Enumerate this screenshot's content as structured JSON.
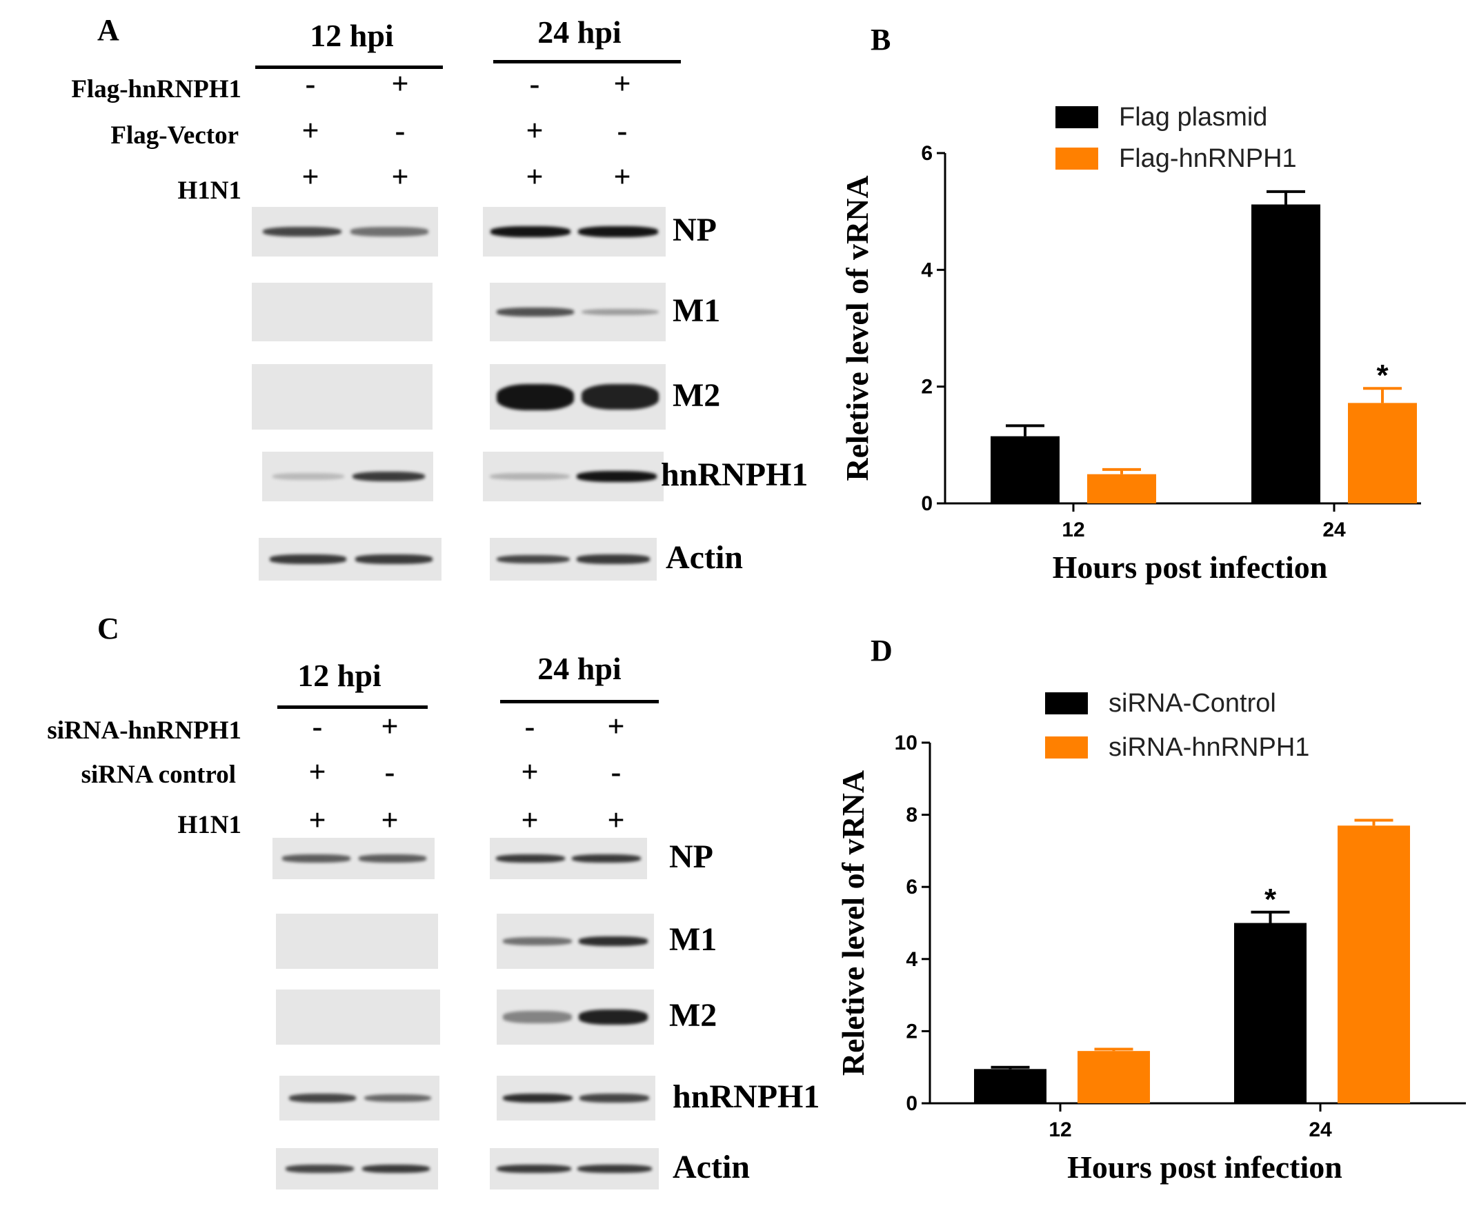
{
  "panel_a": {
    "letter": "A",
    "time_headers": [
      "12 hpi",
      "24 hpi"
    ],
    "conditions": [
      {
        "label": "Flag-hnRNPH1",
        "signs": [
          "-",
          "+",
          "-",
          "+"
        ]
      },
      {
        "label": "Flag-Vector",
        "signs": [
          "+",
          "-",
          "+",
          "-"
        ]
      },
      {
        "label": "H1N1",
        "signs": [
          "+",
          "+",
          "+",
          "+"
        ]
      }
    ],
    "blots": [
      {
        "label": "NP",
        "levels": [
          0.8,
          0.6,
          1.0,
          1.0
        ]
      },
      {
        "label": "M1",
        "levels": [
          0,
          0,
          0.75,
          0.35
        ]
      },
      {
        "label": "M2",
        "levels": [
          0,
          0,
          1.0,
          0.95
        ]
      },
      {
        "label": "hnRNPH1",
        "levels": [
          0.15,
          0.85,
          0.2,
          1.0
        ]
      },
      {
        "label": "Actin",
        "levels": [
          0.85,
          0.85,
          0.8,
          0.85
        ]
      }
    ]
  },
  "panel_c": {
    "letter": "C",
    "time_headers": [
      "12 hpi",
      "24 hpi"
    ],
    "conditions": [
      {
        "label": "siRNA-hnRNPH1",
        "signs": [
          "-",
          "+",
          "-",
          "+"
        ]
      },
      {
        "label": "siRNA control",
        "signs": [
          "+",
          "-",
          "+",
          "-"
        ]
      },
      {
        "label": "H1N1",
        "signs": [
          "+",
          "+",
          "+",
          "+"
        ]
      }
    ],
    "blots": [
      {
        "label": "NP",
        "levels": [
          0.7,
          0.7,
          0.85,
          0.85
        ]
      },
      {
        "label": "M1",
        "levels": [
          0,
          0,
          0.6,
          0.9
        ]
      },
      {
        "label": "M2",
        "levels": [
          0,
          0,
          0.5,
          0.95
        ]
      },
      {
        "label": "hnRNPH1",
        "levels": [
          0.8,
          0.65,
          0.9,
          0.8
        ]
      },
      {
        "label": "Actin",
        "levels": [
          0.8,
          0.85,
          0.85,
          0.85
        ]
      }
    ]
  },
  "colors": {
    "black_series": "#000000",
    "orange_series": "#ff8000"
  },
  "chart_data": [
    {
      "panel": "B",
      "type": "bar",
      "categories": [
        "12",
        "24"
      ],
      "series": [
        {
          "name": "Flag plasmid",
          "color": "#000000",
          "values": [
            1.15,
            5.12
          ],
          "errors": [
            0.18,
            0.22
          ]
        },
        {
          "name": "Flag-hnRNPH1",
          "color": "#ff8000",
          "values": [
            0.5,
            1.72
          ],
          "errors": [
            0.08,
            0.25
          ]
        }
      ],
      "annotations": [
        {
          "text": "*",
          "category": "24",
          "series": "Flag-hnRNPH1"
        }
      ],
      "xlabel": "Hours post infection",
      "ylabel": "Reletive level of vRNA",
      "ylim": [
        0,
        6
      ],
      "yticks": [
        0,
        2,
        4,
        6
      ],
      "legend": "top-center",
      "grid": false
    },
    {
      "panel": "D",
      "type": "bar",
      "categories": [
        "12",
        "24"
      ],
      "series": [
        {
          "name": "siRNA-Control",
          "color": "#000000",
          "values": [
            0.95,
            5.0
          ],
          "errors": [
            0.05,
            0.3
          ]
        },
        {
          "name": "siRNA-hnRNPH1",
          "color": "#ff8000",
          "values": [
            1.45,
            7.7
          ],
          "errors": [
            0.05,
            0.15
          ]
        }
      ],
      "annotations": [
        {
          "text": "*",
          "category": "24",
          "series": "siRNA-Control"
        }
      ],
      "xlabel": "Hours post infection",
      "ylabel": "Reletive level of vRNA",
      "ylim": [
        0,
        10
      ],
      "yticks": [
        0,
        2,
        4,
        6,
        8,
        10
      ],
      "legend": "top-center",
      "grid": false
    }
  ]
}
